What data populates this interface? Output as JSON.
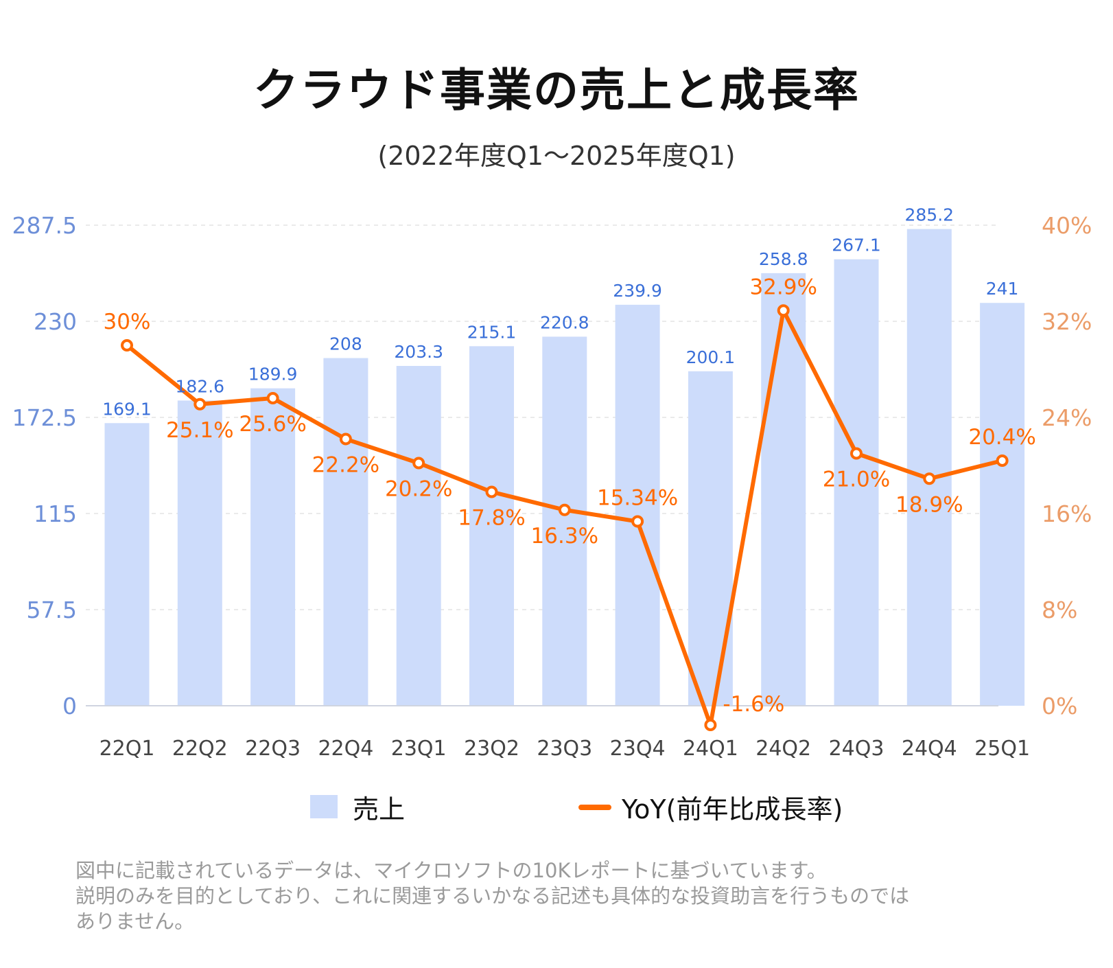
{
  "title": "クラウド事業の売上と成長率",
  "subtitle": "(2022年度Q1〜2025年度Q1)",
  "legend": {
    "bar_label": "売上",
    "line_label": "YoY(前年比成長率)"
  },
  "footnote": {
    "line1": "図中に記載されているデータは、マイクロソフトの10Kレポートに基づいています。",
    "line2": "説明のみを目的としており、これに関連するいかなる記述も具体的な投資助言を行うものでは",
    "line3": "ありません。"
  },
  "colors": {
    "bar": "#cddcfb",
    "line": "#ff6a00",
    "left_axis": "#6d8fd8",
    "right_axis": "#eb9c68",
    "bar_label": "#3a6fd8",
    "grid": "#e3e3e3"
  },
  "chart_data": {
    "type": "bar",
    "categories": [
      "22Q1",
      "22Q2",
      "22Q3",
      "22Q4",
      "23Q1",
      "23Q2",
      "23Q3",
      "23Q4",
      "24Q1",
      "24Q2",
      "24Q3",
      "24Q4",
      "25Q1"
    ],
    "series": [
      {
        "name": "売上",
        "type": "bar",
        "axis": "left",
        "values": [
          169.1,
          182.6,
          189.9,
          208,
          203.3,
          215.1,
          220.8,
          239.9,
          200.1,
          258.8,
          267.1,
          285.2,
          241
        ],
        "labels": [
          "169.1",
          "182.6",
          "189.9",
          "208",
          "203.3",
          "215.1",
          "220.8",
          "239.9",
          "200.1",
          "258.8",
          "267.1",
          "285.2",
          "241"
        ]
      },
      {
        "name": "YoY(前年比成長率)",
        "type": "line",
        "axis": "right",
        "values": [
          30,
          25.1,
          25.6,
          22.2,
          20.2,
          17.8,
          16.3,
          15.34,
          -1.6,
          32.9,
          21.0,
          18.9,
          20.4
        ],
        "labels": [
          "30%",
          "25.1%",
          "25.6%",
          "22.2%",
          "20.2%",
          "17.8%",
          "16.3%",
          "15.34%",
          "-1.6%",
          "32.9%",
          "21.0%",
          "18.9%",
          "20.4%"
        ],
        "label_position": [
          "above",
          "below",
          "below",
          "below",
          "below",
          "below",
          "below",
          "above",
          "right",
          "above",
          "below",
          "below",
          "above"
        ]
      }
    ],
    "left_axis": {
      "ticks": [
        "0",
        "57.5",
        "115",
        "172.5",
        "230",
        "287.5"
      ],
      "ylim": [
        0,
        287.5
      ]
    },
    "right_axis": {
      "ticks": [
        "0%",
        "8%",
        "16%",
        "24%",
        "32%",
        "40%"
      ],
      "ylim": [
        0,
        40
      ]
    },
    "grid": "horizontal dashed",
    "legend_position": "bottom"
  }
}
